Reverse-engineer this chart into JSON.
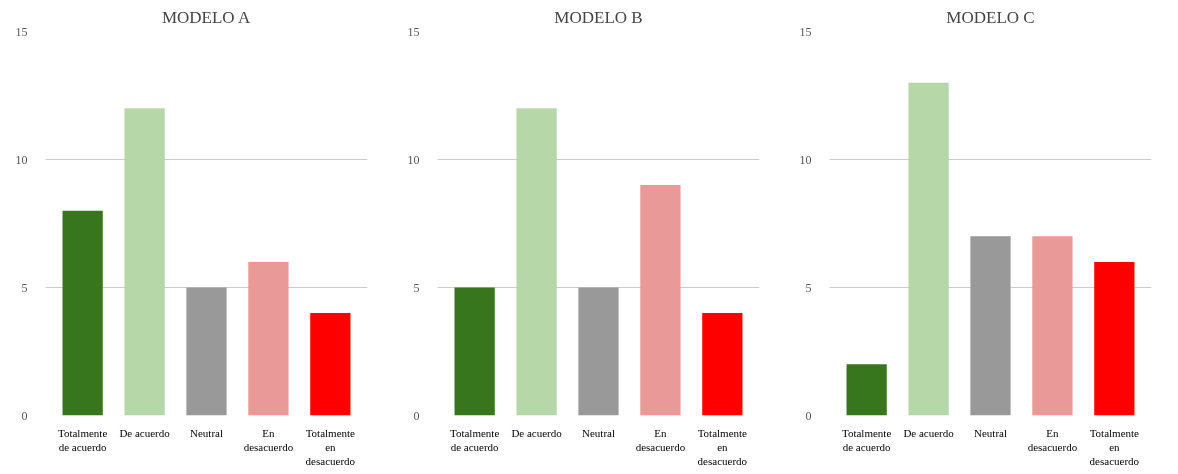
{
  "chart_data": [
    {
      "type": "bar",
      "title": "MODELO A",
      "categories": [
        "Totalmente de acuerdo",
        "De acuerdo",
        "Neutral",
        "En desacuerdo",
        "Totalmente en desacuerdo"
      ],
      "values": [
        8,
        12,
        5,
        6,
        4
      ],
      "colors": [
        "#38761d",
        "#b6d7a8",
        "#999999",
        "#ea9999",
        "#ff0000"
      ],
      "ylim": [
        0,
        15
      ],
      "yticks": [
        0,
        5,
        10,
        15
      ],
      "grid": "y"
    },
    {
      "type": "bar",
      "title": "MODELO B",
      "categories": [
        "Totalmente de acuerdo",
        "De acuerdo",
        "Neutral",
        "En desacuerdo",
        "Totalmente en desacuerdo"
      ],
      "values": [
        5,
        12,
        5,
        9,
        4
      ],
      "colors": [
        "#38761d",
        "#b6d7a8",
        "#999999",
        "#ea9999",
        "#ff0000"
      ],
      "ylim": [
        0,
        15
      ],
      "yticks": [
        0,
        5,
        10,
        15
      ],
      "grid": "y"
    },
    {
      "type": "bar",
      "title": "MODELO C",
      "categories": [
        "Totalmente de acuerdo",
        "De acuerdo",
        "Neutral",
        "En desacuerdo",
        "Totalmente en desacuerdo"
      ],
      "values": [
        2,
        13,
        7,
        7,
        6
      ],
      "colors": [
        "#38761d",
        "#b6d7a8",
        "#999999",
        "#ea9999",
        "#ff0000"
      ],
      "ylim": [
        0,
        15
      ],
      "yticks": [
        0,
        5,
        10,
        15
      ],
      "grid": "y"
    }
  ]
}
